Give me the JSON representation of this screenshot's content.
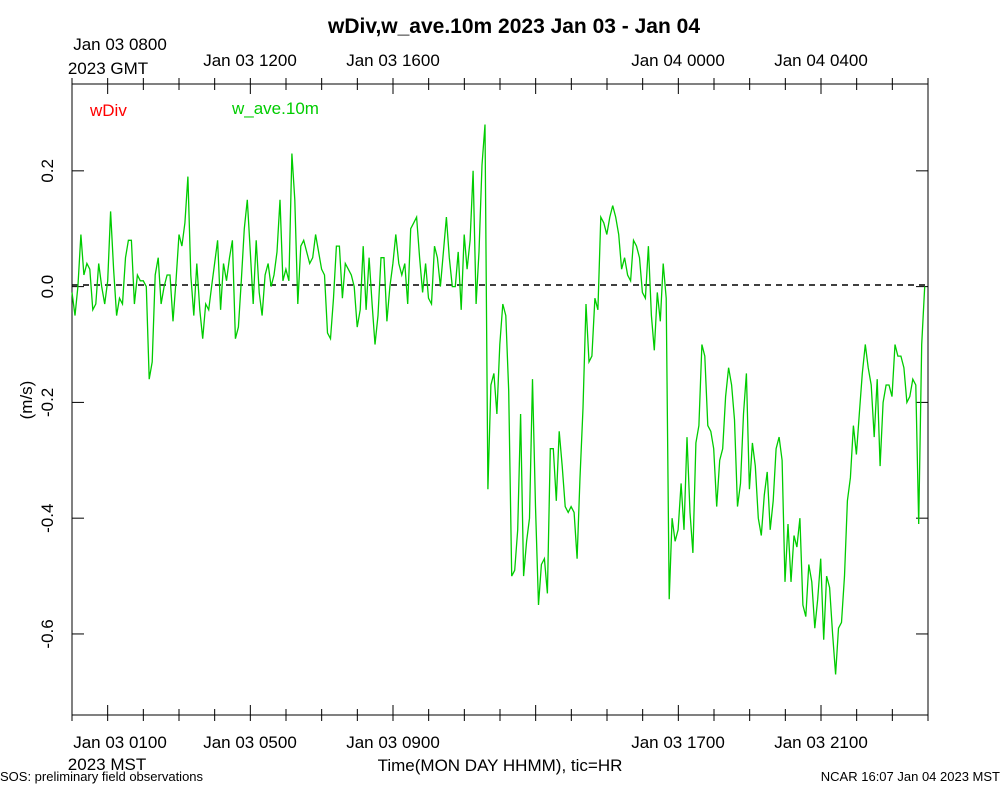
{
  "chart_data": {
    "type": "line",
    "title": "wDiv,w_ave.10m 2023 Jan 03 - Jan 04",
    "xlabel": "Time(MON DAY HHMM), tic=HR",
    "ylabel": "(m/s)",
    "xlim_hours_mst": [
      0,
      24
    ],
    "ylim": [
      -0.74,
      0.35
    ],
    "zero_line": true,
    "top_axis_labels": [
      "Jan 03 0800",
      "2023 GMT",
      "Jan 03 1200",
      "Jan 03 1600",
      "Jan 04 0000",
      "Jan 04 0400"
    ],
    "bottom_axis_labels": [
      "Jan 03 0100",
      "2023 MST",
      "Jan 03 0500",
      "Jan 03 0900",
      "Jan 03 1700",
      "Jan 03 2100"
    ],
    "y_ticks": [
      -0.6,
      -0.4,
      -0.2,
      0.0,
      0.2
    ],
    "y_tick_labels": [
      "-0.6",
      "-0.4",
      "-0.2",
      "0.0",
      "0.2"
    ],
    "legend": [
      "wDiv",
      "w_ave.10m"
    ],
    "series": [
      {
        "name": "w_ave.10m",
        "color": "#00cc00",
        "x_start_hour_mst": 0,
        "x_step_hours": 0.0833,
        "values": [
          -0.01,
          -0.05,
          0.0,
          0.09,
          0.02,
          0.04,
          0.03,
          -0.04,
          -0.03,
          0.04,
          0.0,
          -0.03,
          0.01,
          0.13,
          0.03,
          -0.05,
          -0.02,
          -0.03,
          0.05,
          0.08,
          0.08,
          -0.03,
          0.02,
          0.01,
          0.01,
          0.0,
          -0.16,
          -0.13,
          0.02,
          0.05,
          -0.03,
          0.0,
          0.02,
          0.02,
          -0.06,
          0.01,
          0.09,
          0.07,
          0.11,
          0.19,
          0.02,
          -0.05,
          0.04,
          -0.04,
          -0.09,
          -0.03,
          -0.04,
          0.0,
          0.04,
          0.08,
          -0.04,
          0.04,
          0.01,
          0.05,
          0.08,
          -0.09,
          -0.07,
          0.01,
          0.1,
          0.15,
          0.06,
          -0.03,
          0.08,
          -0.01,
          -0.05,
          0.02,
          0.04,
          0.0,
          0.02,
          0.06,
          0.15,
          0.01,
          0.03,
          0.01,
          0.23,
          0.15,
          -0.03,
          0.07,
          0.08,
          0.06,
          0.04,
          0.05,
          0.09,
          0.06,
          0.03,
          0.02,
          -0.08,
          -0.09,
          -0.02,
          0.07,
          0.07,
          -0.02,
          0.04,
          0.03,
          0.02,
          0.0,
          -0.07,
          -0.04,
          0.07,
          -0.04,
          0.05,
          -0.03,
          -0.1,
          -0.05,
          0.05,
          0.05,
          -0.06,
          0.0,
          0.04,
          0.09,
          0.04,
          0.02,
          0.04,
          -0.03,
          0.1,
          0.11,
          0.12,
          0.05,
          -0.01,
          0.04,
          -0.02,
          -0.03,
          0.07,
          0.05,
          0.0,
          0.06,
          0.12,
          0.05,
          0.0,
          0.0,
          0.06,
          -0.04,
          0.09,
          0.03,
          0.08,
          0.2,
          -0.03,
          0.06,
          0.21,
          0.28,
          -0.35,
          -0.17,
          -0.15,
          -0.22,
          -0.1,
          -0.03,
          -0.05,
          -0.18,
          -0.5,
          -0.49,
          -0.42,
          -0.22,
          -0.5,
          -0.44,
          -0.4,
          -0.16,
          -0.38,
          -0.55,
          -0.48,
          -0.47,
          -0.53,
          -0.28,
          -0.28,
          -0.37,
          -0.25,
          -0.31,
          -0.38,
          -0.39,
          -0.38,
          -0.39,
          -0.47,
          -0.33,
          -0.21,
          -0.03,
          -0.13,
          -0.12,
          -0.02,
          -0.04,
          0.12,
          0.11,
          0.09,
          0.12,
          0.14,
          0.12,
          0.09,
          0.03,
          0.05,
          0.02,
          0.01,
          0.08,
          0.07,
          0.05,
          -0.01,
          -0.02,
          0.07,
          -0.05,
          -0.11,
          -0.01,
          -0.06,
          0.04,
          -0.02,
          -0.54,
          -0.4,
          -0.44,
          -0.42,
          -0.34,
          -0.42,
          -0.26,
          -0.39,
          -0.46,
          -0.27,
          -0.24,
          -0.1,
          -0.12,
          -0.24,
          -0.25,
          -0.28,
          -0.38,
          -0.3,
          -0.28,
          -0.19,
          -0.14,
          -0.17,
          -0.23,
          -0.38,
          -0.34,
          -0.22,
          -0.15,
          -0.35,
          -0.27,
          -0.31,
          -0.4,
          -0.43,
          -0.36,
          -0.32,
          -0.42,
          -0.37,
          -0.28,
          -0.26,
          -0.3,
          -0.51,
          -0.41,
          -0.51,
          -0.43,
          -0.45,
          -0.4,
          -0.55,
          -0.57,
          -0.48,
          -0.51,
          -0.59,
          -0.54,
          -0.47,
          -0.61,
          -0.5,
          -0.52,
          -0.6,
          -0.67,
          -0.59,
          -0.58,
          -0.5,
          -0.37,
          -0.33,
          -0.24,
          -0.29,
          -0.22,
          -0.15,
          -0.1,
          -0.14,
          -0.17,
          -0.26,
          -0.16,
          -0.31,
          -0.2,
          -0.17,
          -0.17,
          -0.19,
          -0.1,
          -0.12,
          -0.12,
          -0.14,
          -0.2,
          -0.19,
          -0.16,
          -0.17,
          -0.41,
          -0.1,
          0.0
        ]
      }
    ]
  },
  "footer": {
    "left": "SOS: preliminary field observations",
    "right": "NCAR 16:07 Jan 04 2023 MST"
  }
}
